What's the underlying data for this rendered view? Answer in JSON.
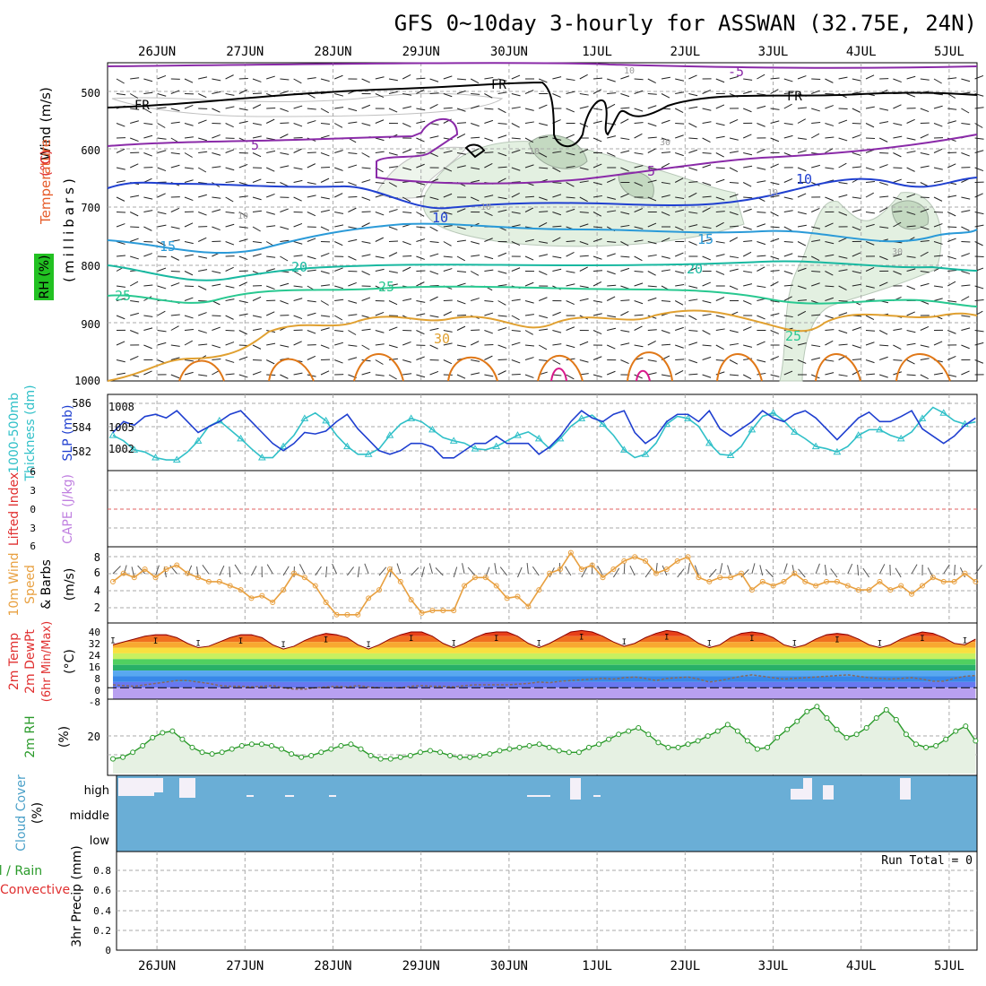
{
  "title": "GFS 0~10day 3-hourly for ASSWAN (32.75E, 24N)",
  "time_axis": {
    "day_labels": [
      "26JUN",
      "27JUN",
      "28JUN",
      "29JUN",
      "30JUN",
      "1JUL",
      "2JUL",
      "3JUL",
      "4JUL",
      "5JUL"
    ],
    "start_day_offset": -0.5,
    "end_day_offset": 9.3
  },
  "colors": {
    "grid": "#aaaaaa",
    "slp": "#1f3fd0",
    "thickness": "#30c0c8",
    "wind_speed": "#e8a040",
    "rh": "#2a9a2a",
    "rh_fill": "#e6f1e3",
    "cloud": "#6aaed6",
    "cape_zero": "#e06060",
    "temp_label": "#e03030",
    "rh_label": "#22aa22",
    "cloud_label": "#4aa0c8"
  },
  "panels": {
    "upper": {
      "labels": {
        "wind": "Wind (m/s)",
        "temperature": "Temperature",
        "temp_unit": "(°C)",
        "rh_box": "RH (%)",
        "millibars": "(millibars)"
      },
      "y_ticks": [
        "500",
        "600",
        "700",
        "800",
        "900",
        "1000"
      ],
      "contour_labels": [
        "FR",
        "FR",
        "FR",
        "-5",
        "5",
        "5",
        "10",
        "10",
        "10",
        "15",
        "15",
        "20",
        "20",
        "25",
        "25",
        "25",
        "30",
        "10",
        "10",
        "30",
        "10",
        "30",
        "10"
      ]
    },
    "slp": {
      "labels": {
        "thickness": "1000-500mb",
        "thickness2": "Thickness (dm)",
        "slp": "SLP (mb)"
      },
      "left_ticks": [
        "586",
        "584",
        "582"
      ],
      "right_ticks": [
        "1008",
        "1005",
        "1002"
      ]
    },
    "cape": {
      "labels": {
        "li": "Lifted Index",
        "cape": "CAPE (J/kg)"
      },
      "ticks": [
        "6",
        "3",
        "0",
        "3",
        "6"
      ]
    },
    "wind10m": {
      "labels": {
        "a": "10m Wind",
        "b": "Speed",
        "c": "& Barbs",
        "unit": "(m/s)"
      },
      "ticks": [
        "8",
        "6",
        "4",
        "2"
      ]
    },
    "temp2m": {
      "labels": {
        "a": "2m Temp",
        "b": "2m DewPt",
        "c": "(6hr Min/Max)",
        "unit": "(°C)"
      },
      "ticks": [
        "40",
        "32",
        "24",
        "16",
        "8",
        "0",
        "-8"
      ]
    },
    "rh2m": {
      "labels": {
        "a": "2m RH",
        "unit": "(%)"
      },
      "ticks": [
        "20"
      ]
    },
    "cloud": {
      "labels": {
        "a": "Cloud Cover",
        "unit": "(%)"
      },
      "levels": [
        "high",
        "middle",
        "low"
      ]
    },
    "precip": {
      "labels": {
        "a": "Total / Rain",
        "b": "Convective",
        "c": "3hr Precip (mm)"
      },
      "ticks": [
        "0.8",
        "0.6",
        "0.4",
        "0.2",
        "0"
      ],
      "run_total": "Run Total = 0"
    }
  },
  "chart_data": [
    {
      "type": "line",
      "title": "",
      "ylabel": "SLP (mb)",
      "ylim": [
        1000,
        1010
      ],
      "series": [
        {
          "name": "SLP (mb)",
          "values": [
            1005,
            1006.5,
            1006,
            1007.2,
            1007.5,
            1007,
            1008,
            1006.5,
            1005,
            1005.8,
            1006.5,
            1007.5,
            1008,
            1006.5,
            1005,
            1003.5,
            1002.5,
            1003.5,
            1005,
            1004.8,
            1005.2,
            1006.5,
            1007.5,
            1005.5,
            1004,
            1002.5,
            1002,
            1002.5,
            1003.5,
            1003.5,
            1003,
            1001.5,
            1001.5,
            1002.5,
            1003.5,
            1003.5,
            1004.5,
            1003.5,
            1003.5,
            1003.5,
            1002,
            1003,
            1004.5,
            1006.5,
            1008,
            1007,
            1006.5,
            1007.5,
            1008,
            1005,
            1003.5,
            1004.5,
            1006.5,
            1007.5,
            1007.5,
            1006.5,
            1008,
            1005.5,
            1004.5,
            1005.5,
            1006.5,
            1008,
            1007,
            1006.5,
            1007.5,
            1008,
            1007,
            1005.5,
            1004,
            1005.5,
            1007,
            1007.8,
            1006.5,
            1006.5,
            1007.2,
            1008,
            1005.5,
            1004.5,
            1003.5,
            1004.5,
            1006,
            1007
          ]
        }
      ]
    },
    {
      "type": "line",
      "title": "",
      "ylabel": "1000-500mb Thickness (dm)",
      "ylim": [
        580.5,
        587
      ],
      "series": [
        {
          "name": "1000-500mb Thickness (dm)",
          "values": [
            583.5,
            583,
            582.2,
            582,
            581.5,
            581.3,
            581.3,
            582,
            583,
            584.3,
            584.8,
            584,
            583.2,
            582.3,
            581.5,
            581.5,
            582.5,
            583.5,
            585,
            585.5,
            584.8,
            583.5,
            582.5,
            581.8,
            581.8,
            582.3,
            583.5,
            584.5,
            585,
            584.7,
            584,
            583.3,
            583,
            582.8,
            582.3,
            582.2,
            582.5,
            583,
            583.5,
            583.8,
            583.2,
            582.3,
            583.2,
            584.3,
            585,
            585.3,
            584.5,
            583.5,
            582.2,
            581.5,
            581.8,
            582.8,
            584.5,
            585.2,
            585,
            584.3,
            582.8,
            581.8,
            581.7,
            582.5,
            584,
            585.2,
            585.5,
            584.8,
            583.8,
            583.2,
            582.5,
            582.3,
            582,
            582.5,
            583.5,
            584,
            584,
            583.5,
            583.2,
            583.8,
            585,
            586,
            585.5,
            584.8,
            584.5,
            584.7
          ]
        }
      ]
    },
    {
      "type": "line",
      "title": "",
      "ylabel": "10m Wind Speed (m/s)",
      "ylim": [
        0,
        9
      ],
      "series": [
        {
          "name": "10m Wind Speed",
          "values": [
            5,
            6,
            5.5,
            6.5,
            5.5,
            6.5,
            7,
            6,
            5.5,
            5,
            5,
            4.5,
            4,
            3,
            3.3,
            2.5,
            4,
            6,
            5.5,
            4.5,
            2.5,
            1,
            1,
            1,
            3,
            4,
            6.5,
            5,
            2.8,
            1.2,
            1.5,
            1.5,
            1.5,
            4.5,
            5.5,
            5.5,
            4.5,
            3,
            3.2,
            2,
            4,
            6,
            6.5,
            8.5,
            6.5,
            7,
            5.5,
            6.5,
            7.5,
            8,
            7.5,
            6,
            6.5,
            7.5,
            8,
            5.5,
            5,
            5.5,
            5.5,
            6,
            4,
            5,
            4.5,
            5,
            6,
            5,
            4.5,
            5,
            5,
            4.5,
            4,
            4,
            5,
            4,
            4.5,
            3.5,
            4.5,
            5.5,
            5,
            5,
            6,
            5
          ]
        }
      ]
    },
    {
      "type": "area",
      "title": "",
      "ylabel": "2m Temp (°C)",
      "ylim": [
        -8,
        44
      ],
      "series": [
        {
          "name": "2m Temp",
          "values": [
            30,
            32,
            34,
            36,
            37,
            37,
            35,
            31,
            28,
            29,
            32,
            35,
            37,
            37,
            35,
            30,
            27,
            29,
            33,
            36,
            38,
            37,
            35,
            30,
            27,
            30,
            34,
            37,
            39,
            39,
            36,
            31,
            28,
            31,
            35,
            38,
            39,
            39,
            36,
            31,
            28,
            31,
            35,
            39,
            40,
            39,
            36,
            32,
            29,
            31,
            35,
            38,
            40,
            39,
            36,
            31,
            28,
            30,
            35,
            38,
            39,
            38,
            35,
            30,
            28,
            30,
            34,
            37,
            38,
            37,
            34,
            30,
            28,
            30,
            34,
            37,
            39,
            38,
            35,
            31,
            30,
            34
          ]
        },
        {
          "name": "2m DewPt",
          "values": [
            2,
            1.5,
            1,
            2,
            3,
            4,
            5,
            5,
            4,
            3,
            1.5,
            1,
            1,
            0.5,
            1,
            1.5,
            0,
            -1,
            -1,
            0,
            0.5,
            1,
            0.5,
            1.5,
            0.5,
            0,
            0,
            0,
            1,
            1.5,
            1,
            1,
            0.5,
            1.5,
            2,
            2,
            2,
            2,
            2.5,
            3,
            4,
            3.5,
            4.5,
            5,
            5.5,
            6,
            6.5,
            6,
            7,
            7.5,
            6.5,
            5,
            6.5,
            7,
            7.5,
            6,
            4,
            5,
            6.5,
            8,
            9,
            8,
            7,
            6,
            6.5,
            7,
            7.5,
            8,
            8.5,
            9,
            8,
            7,
            6.5,
            6,
            6.5,
            7,
            6,
            4.5,
            4.5,
            6.5,
            8,
            8.5
          ]
        }
      ]
    },
    {
      "type": "area",
      "title": "",
      "ylabel": "2m RH (%)",
      "ylim": [
        0,
        45
      ],
      "series": [
        {
          "name": "2m RH",
          "values": [
            9,
            10,
            13,
            17,
            22,
            25,
            26,
            21,
            16,
            13,
            12,
            13,
            15,
            17,
            18,
            18,
            17,
            15,
            12,
            10,
            11,
            13,
            15,
            17,
            18,
            15,
            11,
            9,
            9,
            10,
            11,
            13,
            14,
            13,
            11,
            10,
            10,
            11,
            12,
            14,
            15,
            16,
            17,
            18,
            16,
            14,
            13,
            13,
            16,
            18,
            21,
            24,
            26,
            28,
            24,
            19,
            16,
            16,
            18,
            20,
            23,
            26,
            30,
            26,
            20,
            15,
            16,
            22,
            27,
            32,
            38,
            41,
            34,
            27,
            22,
            24,
            28,
            34,
            39,
            33,
            24,
            18,
            16,
            17,
            21,
            26,
            29,
            20
          ]
        }
      ]
    },
    {
      "type": "bar",
      "title": "",
      "ylabel": "3hr Precip (mm)",
      "ylim": [
        0,
        1
      ],
      "series": [
        {
          "name": "3hr Precip",
          "values": []
        }
      ]
    }
  ]
}
